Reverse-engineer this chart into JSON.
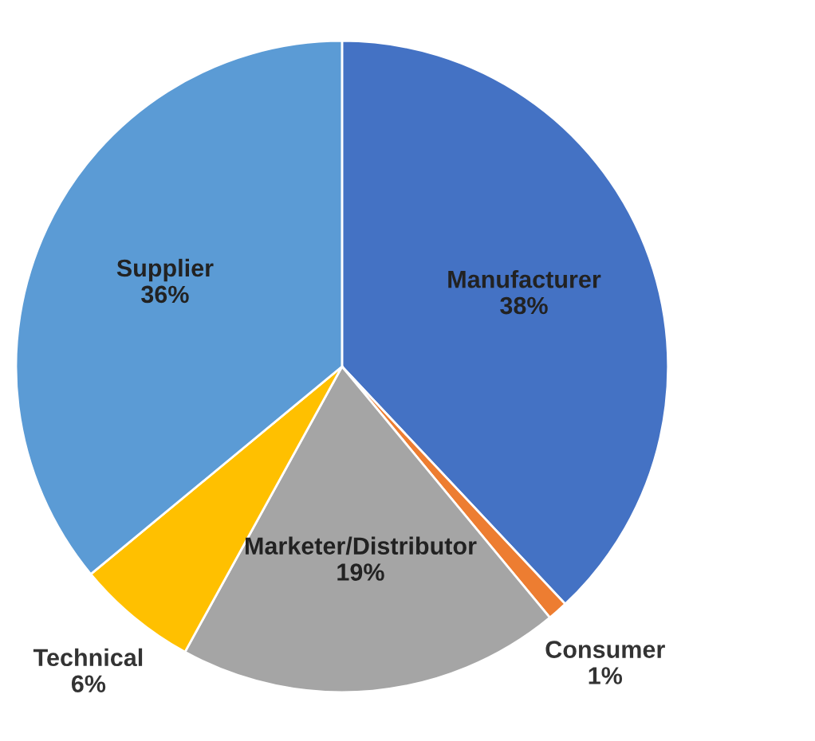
{
  "chart_data": {
    "type": "pie",
    "categories": [
      "Manufacturer",
      "Consumer",
      "Marketer/Distributor",
      "Technical",
      "Supplier"
    ],
    "values": [
      38,
      1,
      19,
      6,
      36
    ],
    "value_labels": [
      "38%",
      "1%",
      "19%",
      "6%",
      "36%"
    ],
    "colors": [
      "#4472c4",
      "#ed7d31",
      "#a5a5a5",
      "#ffc000",
      "#5b9bd5"
    ],
    "legend": false
  }
}
